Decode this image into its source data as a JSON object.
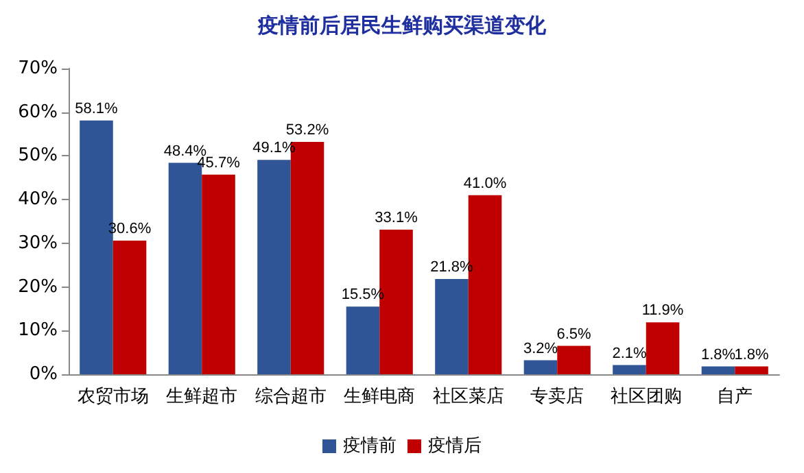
{
  "chart_data": {
    "type": "bar",
    "title": "疫情前后居民生鲜购买渠道变化",
    "categories": [
      "农贸市场",
      "生鲜超市",
      "综合超市",
      "生鲜电商",
      "社区菜店",
      "专卖店",
      "社区团购",
      "自产"
    ],
    "series": [
      {
        "name": "疫情前",
        "color": "#2f5597",
        "values": [
          58.1,
          48.4,
          49.1,
          15.5,
          21.8,
          3.2,
          2.1,
          1.8
        ],
        "value_labels": [
          "58.1%",
          "48.4%",
          "49.1%",
          "15.5%",
          "21.8%",
          "3.2%",
          "2.1%",
          "1.8%"
        ]
      },
      {
        "name": "疫情后",
        "color": "#c00000",
        "values": [
          30.6,
          45.7,
          53.2,
          33.1,
          41.0,
          6.5,
          11.9,
          1.8
        ],
        "value_labels": [
          "30.6%",
          "45.7%",
          "53.2%",
          "33.1%",
          "41.0%",
          "6.5%",
          "11.9%",
          "1.8%"
        ]
      }
    ],
    "ylim": [
      0,
      70
    ],
    "yticks": [
      {
        "value": 0,
        "label": "0%"
      },
      {
        "value": 10,
        "label": "10%"
      },
      {
        "value": 20,
        "label": "20%"
      },
      {
        "value": 30,
        "label": "30%"
      },
      {
        "value": 40,
        "label": "40%"
      },
      {
        "value": 50,
        "label": "50%"
      },
      {
        "value": 60,
        "label": "60%"
      },
      {
        "value": 70,
        "label": "70%"
      }
    ],
    "grid": false,
    "legend": "bottom"
  }
}
